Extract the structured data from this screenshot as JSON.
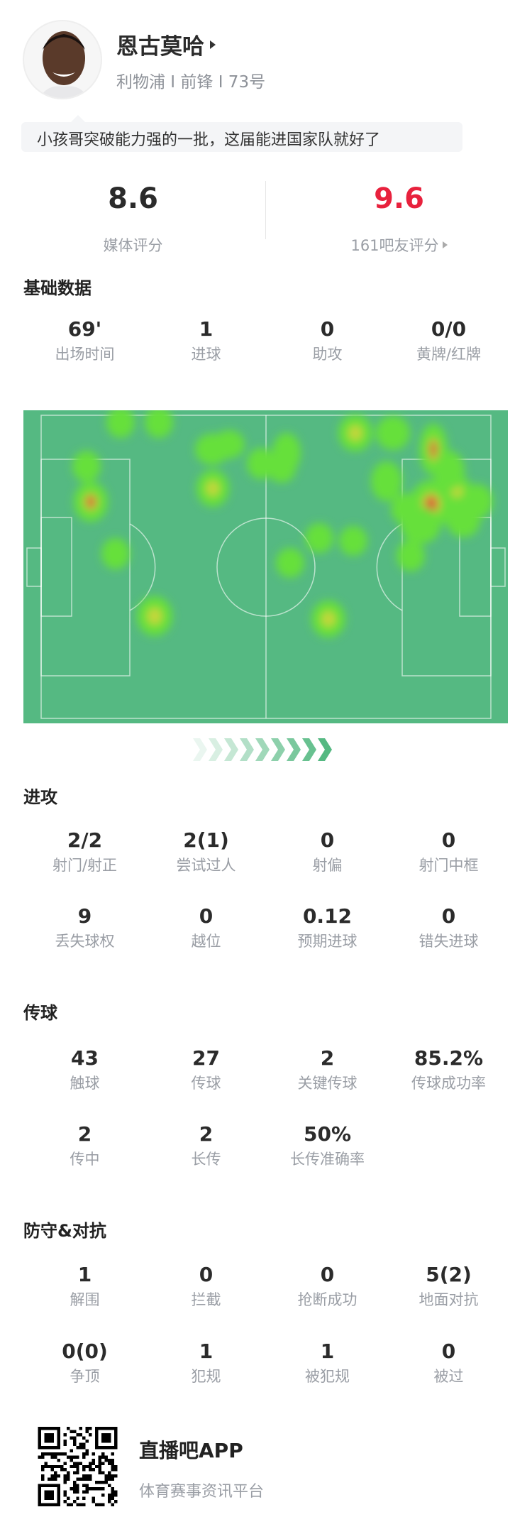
{
  "player": {
    "name": "恩古莫哈",
    "info": "利物浦 I 前锋 I 73号",
    "comment": "小孩哥突破能力强的一批，这届能进国家队就好了"
  },
  "ratings": {
    "media_score": "8.6",
    "media_label": "媒体评分",
    "fan_score": "9.6",
    "fan_label": "161吧友评分",
    "fan_color": "#e8213d"
  },
  "sections": {
    "basic": {
      "title": "基础数据",
      "rows": [
        [
          {
            "value": "69'",
            "label": "出场时间"
          },
          {
            "value": "1",
            "label": "进球"
          },
          {
            "value": "0",
            "label": "助攻"
          },
          {
            "value": "0/0",
            "label": "黄牌/红牌"
          }
        ]
      ]
    },
    "attack": {
      "title": "进攻",
      "rows": [
        [
          {
            "value": "2/2",
            "label": "射门/射正"
          },
          {
            "value": "2(1)",
            "label": "尝试过人"
          },
          {
            "value": "0",
            "label": "射偏"
          },
          {
            "value": "0",
            "label": "射门中框"
          }
        ],
        [
          {
            "value": "9",
            "label": "丢失球权"
          },
          {
            "value": "0",
            "label": "越位"
          },
          {
            "value": "0.12",
            "label": "预期进球"
          },
          {
            "value": "0",
            "label": "错失进球"
          }
        ]
      ]
    },
    "passing": {
      "title": "传球",
      "rows": [
        [
          {
            "value": "43",
            "label": "触球"
          },
          {
            "value": "27",
            "label": "传球"
          },
          {
            "value": "2",
            "label": "关键传球"
          },
          {
            "value": "85.2%",
            "label": "传球成功率"
          }
        ],
        [
          {
            "value": "2",
            "label": "传中"
          },
          {
            "value": "2",
            "label": "长传"
          },
          {
            "value": "50%",
            "label": "长传准确率"
          }
        ]
      ]
    },
    "defense": {
      "title": "防守&对抗",
      "rows": [
        [
          {
            "value": "1",
            "label": "解围"
          },
          {
            "value": "0",
            "label": "拦截"
          },
          {
            "value": "0",
            "label": "抢断成功"
          },
          {
            "value": "5(2)",
            "label": "地面对抗"
          }
        ],
        [
          {
            "value": "0(0)",
            "label": "争顶"
          },
          {
            "value": "1",
            "label": "犯规"
          },
          {
            "value": "1",
            "label": "被犯规"
          },
          {
            "value": "0",
            "label": "被过"
          }
        ]
      ]
    }
  },
  "heatmap": {
    "pitch_color": "#55b982",
    "direction_icon": "chevrons-right-icon"
  },
  "footer": {
    "app_name": "直播吧APP",
    "slogan": "体育赛事资讯平台",
    "qr_icon": "qr-code-icon"
  }
}
